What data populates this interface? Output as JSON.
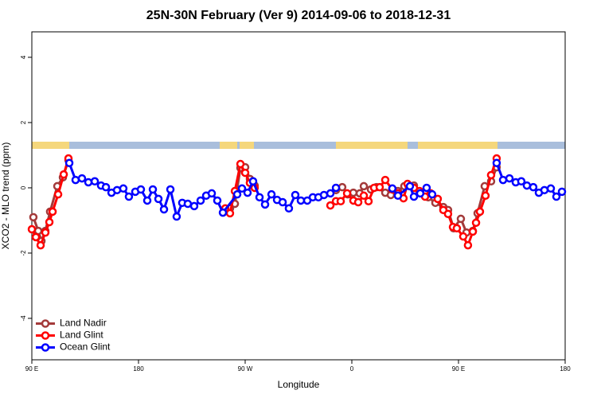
{
  "chart_data": {
    "type": "line",
    "title": "25N-30N February (Ver 9)   2014-09-06 to 2018-12-31",
    "xlabel": "Longitude",
    "ylabel": "XCO2 - MLO trend (ppm)",
    "xlim": [
      90,
      540
    ],
    "ylim": [
      -5.27,
      4.78
    ],
    "xticks": [
      {
        "value": 90,
        "label": "90 E"
      },
      180,
      {
        "value": 270,
        "label": "90 W"
      },
      {
        "value": 360,
        "label": "0"
      },
      {
        "value": 450,
        "label": "90 E"
      },
      {
        "value": 540,
        "label": "180"
      }
    ],
    "yticks": [
      -4,
      -2,
      0,
      2,
      4
    ],
    "legend": "bottomleft",
    "series": [
      {
        "name": "Land Nadir",
        "color": "#a33a3a",
        "x": [
          91.3,
          95.4,
          98.1,
          101.4,
          105.4,
          111.5,
          116.2,
          120.9,
          null,
          257.2,
          261.3,
          266,
          270,
          274,
          278,
          null,
          346.6,
          351.9,
          356.6,
          361.3,
          366.7,
          370.1,
          376.1,
          380.8,
          388.2,
          392.9,
          398.9,
          404.3,
          407.7,
          412.4,
          417.7,
          424.5,
          430.5,
          437.2,
          441.2,
          445.9,
          452,
          456.7,
          462.1,
          466.1,
          472.1,
          477.5,
          482.2
        ],
        "values": [
          -0.9,
          -1.32,
          -1.63,
          -1.32,
          -0.73,
          0.05,
          0.32,
          0.85,
          null,
          -0.63,
          -0.49,
          0.61,
          0.63,
          0.27,
          0.07,
          null,
          -0.07,
          0.02,
          -0.2,
          -0.15,
          -0.17,
          0.05,
          -0.05,
          0.02,
          -0.15,
          -0.22,
          -0.1,
          0.05,
          0.07,
          0.07,
          -0.15,
          -0.29,
          -0.46,
          -0.59,
          -0.68,
          -1.24,
          -0.95,
          -1.37,
          -1.32,
          -0.78,
          0.05,
          0.2,
          0.63
        ]
      },
      {
        "name": "Land Glint",
        "color": "#ff0000",
        "x": [
          90,
          93.4,
          97.4,
          101.4,
          104.8,
          107.5,
          112.2,
          116.9,
          120.9,
          null,
          253.2,
          257.2,
          261.3,
          266,
          270,
          274,
          278,
          null,
          341.9,
          346.6,
          350.6,
          356,
          361.3,
          365.4,
          370.1,
          374.1,
          378.8,
          383.5,
          388.2,
          394.2,
          398.9,
          403.6,
          407,
          412.4,
          417.1,
          421.8,
          426.5,
          432.5,
          437.2,
          441.2,
          445.3,
          448.6,
          454,
          458,
          462.1,
          464.8,
          468.1,
          472.8,
          477.5,
          482.2
        ],
        "values": [
          -1.27,
          -1.51,
          -1.76,
          -1.37,
          -1.05,
          -0.73,
          -0.2,
          0.41,
          0.9,
          null,
          -0.63,
          -0.78,
          -0.1,
          0.73,
          0.46,
          0.15,
          0,
          null,
          -0.54,
          -0.41,
          -0.41,
          -0.17,
          -0.39,
          -0.44,
          -0.24,
          -0.41,
          0,
          0.02,
          0.24,
          -0.05,
          -0.17,
          -0.32,
          0.12,
          0,
          -0.1,
          -0.27,
          -0.17,
          -0.34,
          -0.68,
          -0.8,
          -1.2,
          -1.24,
          -1.49,
          -1.76,
          -1.34,
          -1.07,
          -0.73,
          -0.24,
          0.39,
          0.9
        ]
      },
      {
        "name": "Ocean Glint",
        "color": "#0000ff",
        "x": [
          121.6,
          126.9,
          132.3,
          137.7,
          143.1,
          148.4,
          152.5,
          157.2,
          161.9,
          167.2,
          171.9,
          177.3,
          182,
          187.4,
          192.1,
          196.8,
          201.5,
          206.9,
          212.2,
          216.9,
          221.6,
          227,
          232.4,
          237.1,
          241.8,
          246.5,
          251.2,
          263.3,
          267.3,
          272,
          276.7,
          282.1,
          286.8,
          292.2,
          296.9,
          301.6,
          306.9,
          312.3,
          317,
          322.4,
          327.1,
          331.8,
          336.5,
          341.9,
          346.6,
          null,
          394.2,
          398.9,
          409,
          412.4,
          417.7,
          423.1,
          427.8,
          null,
          482.2,
          487.6,
          493,
          498.3,
          503,
          507.7,
          513.1,
          517.8,
          522.5,
          527.9,
          532.6,
          537.3
        ],
        "values": [
          0.76,
          0.24,
          0.29,
          0.17,
          0.2,
          0.07,
          0.02,
          -0.15,
          -0.07,
          -0.02,
          -0.27,
          -0.12,
          -0.05,
          -0.39,
          -0.05,
          -0.34,
          -0.66,
          -0.05,
          -0.88,
          -0.46,
          -0.49,
          -0.56,
          -0.39,
          -0.24,
          -0.17,
          -0.39,
          -0.76,
          -0.2,
          -0.02,
          -0.15,
          0.2,
          -0.29,
          -0.51,
          -0.2,
          -0.37,
          -0.44,
          -0.63,
          -0.22,
          -0.39,
          -0.39,
          -0.29,
          -0.29,
          -0.22,
          -0.17,
          0,
          null,
          -0.02,
          -0.24,
          0.05,
          -0.27,
          -0.17,
          0,
          -0.2,
          null,
          0.76,
          0.24,
          0.29,
          0.17,
          0.2,
          0.07,
          0.02,
          -0.15,
          -0.07,
          -0.02,
          -0.27,
          -0.12
        ]
      }
    ]
  }
}
